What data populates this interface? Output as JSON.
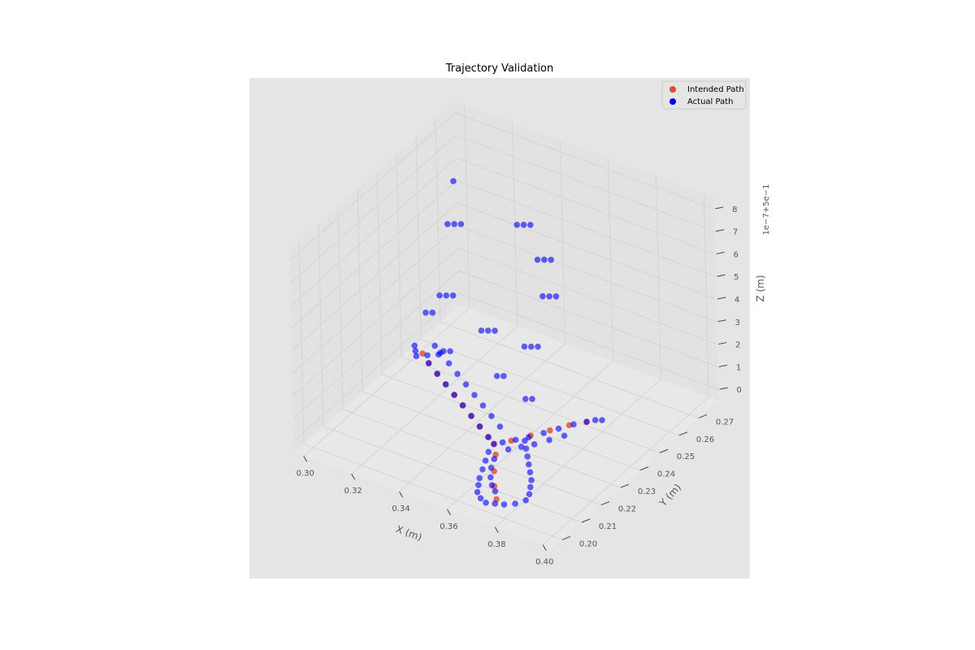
{
  "chart_data": {
    "type": "scatter",
    "projection": "3d",
    "title": "Trajectory Validation",
    "xlabel": "X (m)",
    "ylabel": "Y (m)",
    "zlabel": "Z (m)",
    "z_offset_label": "1e−7+5e−1",
    "xlim": [
      0.296,
      0.404
    ],
    "ylim": [
      0.195,
      0.28
    ],
    "zlim": [
      -0.5,
      8.5
    ],
    "x_ticks": [
      "0.30",
      "0.32",
      "0.34",
      "0.36",
      "0.38",
      "0.40"
    ],
    "y_ticks": [
      "0.20",
      "0.21",
      "0.22",
      "0.23",
      "0.24",
      "0.25",
      "0.26",
      "0.27"
    ],
    "z_ticks": [
      "0",
      "1",
      "2",
      "3",
      "4",
      "5",
      "6",
      "7",
      "8"
    ],
    "grid": true,
    "legend_position": "top-right",
    "background": "#e5e5e5",
    "series": [
      {
        "name": "Intended Path",
        "color": "#e24a33",
        "points": [
          [
            0.305,
            0.25,
            0
          ],
          [
            0.31,
            0.247,
            0
          ],
          [
            0.316,
            0.244,
            0
          ],
          [
            0.322,
            0.241,
            0
          ],
          [
            0.328,
            0.238,
            0
          ],
          [
            0.334,
            0.235,
            0
          ],
          [
            0.34,
            0.232,
            0
          ],
          [
            0.346,
            0.229,
            0
          ],
          [
            0.352,
            0.226,
            0
          ],
          [
            0.356,
            0.224,
            0
          ],
          [
            0.36,
            0.228,
            0
          ],
          [
            0.364,
            0.233,
            0
          ],
          [
            0.368,
            0.238,
            0
          ],
          [
            0.372,
            0.243,
            0
          ],
          [
            0.376,
            0.247,
            0
          ],
          [
            0.36,
            0.22,
            0
          ],
          [
            0.365,
            0.213,
            0
          ],
          [
            0.37,
            0.207,
            0
          ],
          [
            0.375,
            0.202,
            0
          ]
        ]
      },
      {
        "name": "Actual Path",
        "color": "#0000ff",
        "points": [
          [
            0.3,
            0.252,
            0
          ],
          [
            0.302,
            0.25,
            0
          ],
          [
            0.304,
            0.248,
            0
          ],
          [
            0.307,
            0.25,
            0
          ],
          [
            0.31,
            0.252,
            0
          ],
          [
            0.31,
            0.247,
            0
          ],
          [
            0.316,
            0.244,
            0
          ],
          [
            0.322,
            0.241,
            0
          ],
          [
            0.328,
            0.238,
            0
          ],
          [
            0.334,
            0.235,
            0
          ],
          [
            0.34,
            0.232,
            0
          ],
          [
            0.346,
            0.229,
            0
          ],
          [
            0.352,
            0.226,
            0
          ],
          [
            0.356,
            0.224,
            0
          ],
          [
            0.306,
            0.255,
            0
          ],
          [
            0.31,
            0.253,
            0
          ],
          [
            0.316,
            0.25,
            0
          ],
          [
            0.322,
            0.247,
            0
          ],
          [
            0.328,
            0.244,
            0
          ],
          [
            0.334,
            0.241,
            0
          ],
          [
            0.34,
            0.238,
            0
          ],
          [
            0.346,
            0.235,
            0
          ],
          [
            0.352,
            0.232,
            0
          ],
          [
            0.358,
            0.226,
            0
          ],
          [
            0.361,
            0.229,
            0
          ],
          [
            0.364,
            0.232,
            0
          ],
          [
            0.367,
            0.236,
            0
          ],
          [
            0.37,
            0.24,
            0
          ],
          [
            0.373,
            0.244,
            0
          ],
          [
            0.376,
            0.247,
            0
          ],
          [
            0.378,
            0.249,
            0
          ],
          [
            0.38,
            0.25,
            0
          ],
          [
            0.362,
            0.224,
            0
          ],
          [
            0.365,
            0.227,
            0
          ],
          [
            0.368,
            0.23,
            0
          ],
          [
            0.371,
            0.234,
            0
          ],
          [
            0.374,
            0.238,
            0
          ],
          [
            0.357,
            0.22,
            0
          ],
          [
            0.359,
            0.216,
            0
          ],
          [
            0.361,
            0.212,
            0
          ],
          [
            0.363,
            0.208,
            0
          ],
          [
            0.365,
            0.205,
            0
          ],
          [
            0.367,
            0.202,
            0
          ],
          [
            0.37,
            0.2,
            0
          ],
          [
            0.373,
            0.199,
            0
          ],
          [
            0.376,
            0.2,
            0
          ],
          [
            0.379,
            0.201,
            0
          ],
          [
            0.382,
            0.203,
            0
          ],
          [
            0.384,
            0.206,
            0
          ],
          [
            0.383,
            0.209,
            0
          ],
          [
            0.381,
            0.212,
            0
          ],
          [
            0.379,
            0.215,
            0
          ],
          [
            0.376,
            0.218,
            0
          ],
          [
            0.373,
            0.221,
            0
          ],
          [
            0.37,
            0.224,
            0
          ],
          [
            0.367,
            0.227,
            0
          ],
          [
            0.364,
            0.23,
            0
          ],
          [
            0.361,
            0.218,
            0
          ],
          [
            0.363,
            0.214,
            0
          ],
          [
            0.366,
            0.21,
            0
          ],
          [
            0.369,
            0.207,
            0
          ],
          [
            0.372,
            0.205,
            0
          ],
          [
            0.318,
            0.252,
            8
          ],
          [
            0.336,
            0.262,
            6
          ],
          [
            0.338,
            0.263,
            6
          ],
          [
            0.34,
            0.264,
            6
          ],
          [
            0.346,
            0.26,
            5
          ],
          [
            0.348,
            0.261,
            5
          ],
          [
            0.35,
            0.262,
            5
          ],
          [
            0.352,
            0.255,
            4
          ],
          [
            0.354,
            0.256,
            4
          ],
          [
            0.356,
            0.257,
            4
          ],
          [
            0.3,
            0.27,
            4
          ],
          [
            0.302,
            0.271,
            4
          ],
          [
            0.304,
            0.272,
            4
          ],
          [
            0.33,
            0.25,
            2
          ],
          [
            0.332,
            0.251,
            2
          ],
          [
            0.334,
            0.252,
            2
          ],
          [
            0.348,
            0.25,
            2
          ],
          [
            0.35,
            0.251,
            2
          ],
          [
            0.352,
            0.252,
            2
          ],
          [
            0.306,
            0.258,
            2
          ],
          [
            0.308,
            0.259,
            2
          ],
          [
            0.31,
            0.26,
            2
          ],
          [
            0.318,
            0.245,
            1
          ],
          [
            0.32,
            0.246,
            1
          ],
          [
            0.342,
            0.243,
            1
          ],
          [
            0.344,
            0.244,
            1
          ],
          [
            0.358,
            0.238,
            1
          ],
          [
            0.36,
            0.239,
            1
          ],
          [
            0.3,
            0.258,
            1
          ],
          [
            0.302,
            0.259,
            1
          ]
        ]
      }
    ]
  }
}
